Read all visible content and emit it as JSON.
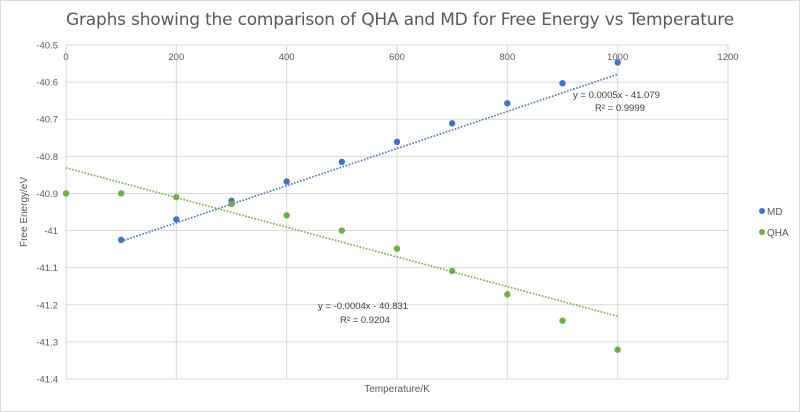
{
  "chart_data": {
    "type": "scatter",
    "title": "Graphs showing the comparison of QHA and MD for  Free Energy vs Temperature",
    "xlabel": "Temperature/K",
    "ylabel": "Free Energy/eV",
    "xlim": [
      0,
      1200
    ],
    "ylim": [
      -41.4,
      -40.5
    ],
    "x_ticks": [
      "0",
      "200",
      "400",
      "600",
      "800",
      "1000",
      "1200"
    ],
    "x_tick_values": [
      0,
      200,
      400,
      600,
      800,
      1000,
      1200
    ],
    "y_ticks": [
      "-40.5",
      "-40.6",
      "-40.7",
      "-40.8",
      "-40.9",
      "-41",
      "-41.1",
      "-41.2",
      "-41.3",
      "-41.4"
    ],
    "y_tick_values": [
      -40.5,
      -40.6,
      -40.7,
      -40.8,
      -40.9,
      -41.0,
      -41.1,
      -41.2,
      -41.3,
      -41.4
    ],
    "x_axis_position": "top",
    "grid": true,
    "legend_position": "right",
    "series": [
      {
        "name": "MD",
        "color": "#4472c4",
        "x": [
          100,
          200,
          300,
          400,
          500,
          600,
          700,
          800,
          900,
          1000
        ],
        "values": [
          -41.025,
          -40.97,
          -40.92,
          -40.868,
          -40.815,
          -40.761,
          -40.711,
          -40.657,
          -40.603,
          -40.547
        ],
        "trendline": {
          "slope": 0.0005,
          "intercept": -41.079,
          "x_range": [
            100,
            1000
          ],
          "equation": "y = 0.0005x - 41.079",
          "r2": "R² = 0.9999"
        }
      },
      {
        "name": "QHA",
        "color": "#70ad47",
        "x": [
          0,
          100,
          200,
          300,
          400,
          500,
          600,
          700,
          800,
          900,
          1000
        ],
        "values": [
          -40.9,
          -40.9,
          -40.91,
          -40.928,
          -40.959,
          -41.0,
          -41.049,
          -41.109,
          -41.172,
          -41.243,
          -41.321
        ],
        "trendline": {
          "slope": -0.0004,
          "intercept": -40.831,
          "x_range": [
            0,
            1000
          ],
          "equation": "y = -0.0004x - 40.831",
          "r2": "R² = 0.9204"
        }
      }
    ]
  }
}
